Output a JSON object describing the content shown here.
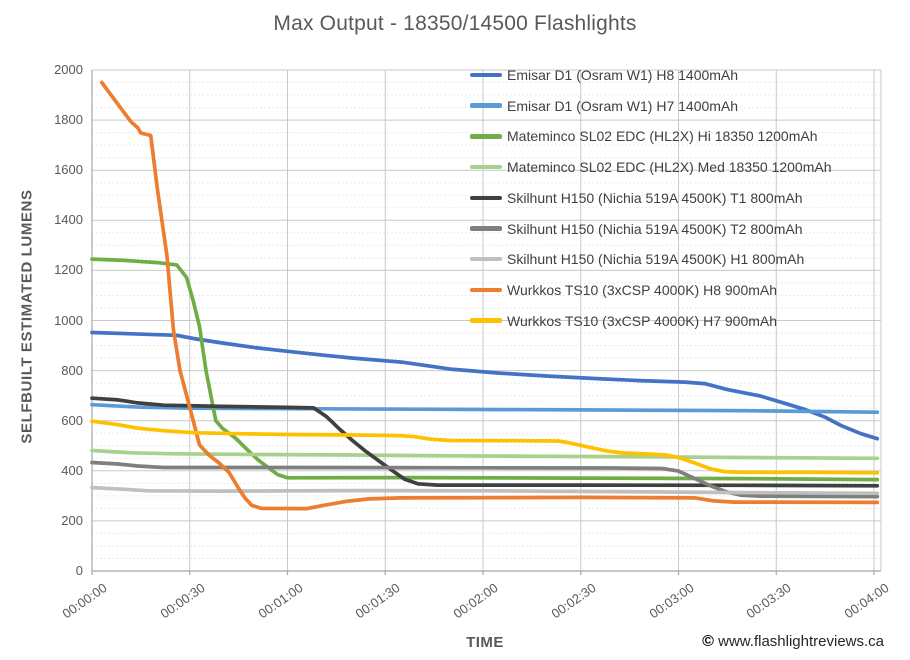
{
  "title": "Max Output - 18350/14500 Flashlights",
  "footer": {
    "copyright_symbol": "©",
    "site": " www.flashlightreviews.ca"
  },
  "x_axis": {
    "title": "TIME",
    "tick_seconds": [
      0,
      30,
      60,
      90,
      120,
      150,
      180,
      210,
      240
    ],
    "tick_labels": [
      "00:00:00",
      "00:00:30",
      "00:01:00",
      "00:01:30",
      "00:02:00",
      "00:02:30",
      "00:03:00",
      "00:03:30",
      "00:04:00"
    ]
  },
  "y_axis": {
    "title": "SELFBUILT ESTIMATED LUMENS",
    "tick_values": [
      0,
      200,
      400,
      600,
      800,
      1000,
      1200,
      1400,
      1600,
      1800,
      2000
    ],
    "tick_labels": [
      "0",
      "200",
      "400",
      "600",
      "800",
      "1000",
      "1200",
      "1400",
      "1600",
      "1800",
      "2000"
    ]
  },
  "colors": {
    "grid_major": "#c9c9c9",
    "grid_minor": "#e2e2e2",
    "axis_line": "#a6a6a6",
    "text": "#595959"
  },
  "chart_data": {
    "type": "line",
    "title": "Max Output - 18350/14500 Flashlights",
    "xlabel": "TIME",
    "ylabel": "SELFBUILT ESTIMATED LUMENS",
    "x_unit": "seconds",
    "xlim": [
      0,
      242
    ],
    "ylim": [
      0,
      2000
    ],
    "grid": {
      "major_y_step": 200,
      "minor_y_step": 50,
      "major_x_step_seconds": 30,
      "minor_gridlines": "dotted"
    },
    "legend_position": "inside-top-right",
    "series": [
      {
        "name": "Emisar D1 (Osram W1) H8 1400mAh",
        "color": "#4472c4",
        "points": [
          [
            0,
            952
          ],
          [
            12,
            947
          ],
          [
            26,
            941
          ],
          [
            32,
            926
          ],
          [
            40,
            910
          ],
          [
            50,
            892
          ],
          [
            60,
            877
          ],
          [
            70,
            863
          ],
          [
            80,
            850
          ],
          [
            95,
            834
          ],
          [
            110,
            806
          ],
          [
            125,
            790
          ],
          [
            140,
            778
          ],
          [
            155,
            768
          ],
          [
            168,
            760
          ],
          [
            182,
            754
          ],
          [
            188,
            748
          ],
          [
            195,
            724
          ],
          [
            205,
            699
          ],
          [
            213,
            668
          ],
          [
            219,
            644
          ],
          [
            225,
            614
          ],
          [
            230,
            580
          ],
          [
            236,
            548
          ],
          [
            241,
            528
          ]
        ]
      },
      {
        "name": "Emisar D1 (Osram W1) H7 1400mAh",
        "color": "#5b9bd5",
        "points": [
          [
            0,
            664
          ],
          [
            15,
            654
          ],
          [
            30,
            650
          ],
          [
            60,
            648
          ],
          [
            100,
            646
          ],
          [
            150,
            643
          ],
          [
            200,
            640
          ],
          [
            241,
            634
          ]
        ]
      },
      {
        "name": "Mateminco SL02 EDC (HL2X) Hi 18350 1200mAh",
        "color": "#70ad47",
        "points": [
          [
            0,
            1245
          ],
          [
            10,
            1240
          ],
          [
            20,
            1231
          ],
          [
            26,
            1222
          ],
          [
            29,
            1172
          ],
          [
            31,
            1082
          ],
          [
            33,
            976
          ],
          [
            35,
            800
          ],
          [
            38,
            600
          ],
          [
            40,
            570
          ],
          [
            44,
            531
          ],
          [
            48,
            480
          ],
          [
            51,
            443
          ],
          [
            54,
            414
          ],
          [
            57,
            385
          ],
          [
            60,
            372
          ],
          [
            100,
            373
          ],
          [
            150,
            371
          ],
          [
            200,
            369
          ],
          [
            241,
            365
          ]
        ]
      },
      {
        "name": "Mateminco SL02 EDC (HL2X) Med 18350 1200mAh",
        "color": "#a9d18e",
        "points": [
          [
            0,
            481
          ],
          [
            12,
            472
          ],
          [
            25,
            468
          ],
          [
            50,
            465
          ],
          [
            80,
            463
          ],
          [
            110,
            460
          ],
          [
            140,
            458
          ],
          [
            170,
            456
          ],
          [
            200,
            453
          ],
          [
            241,
            450
          ]
        ]
      },
      {
        "name": "Skilhunt H150 (Nichia 519A 4500K) T1 800mAh",
        "color": "#404040",
        "points": [
          [
            0,
            690
          ],
          [
            8,
            683
          ],
          [
            14,
            671
          ],
          [
            22,
            662
          ],
          [
            40,
            657
          ],
          [
            60,
            653
          ],
          [
            68,
            651
          ],
          [
            72,
            616
          ],
          [
            76,
            566
          ],
          [
            80,
            520
          ],
          [
            84,
            478
          ],
          [
            88,
            440
          ],
          [
            92,
            402
          ],
          [
            96,
            366
          ],
          [
            100,
            348
          ],
          [
            106,
            343
          ],
          [
            150,
            343
          ],
          [
            200,
            342
          ],
          [
            241,
            340
          ]
        ]
      },
      {
        "name": "Skilhunt H150 (Nichia 519A 4500K) T2 800mAh",
        "color": "#7f7f7f",
        "points": [
          [
            0,
            433
          ],
          [
            8,
            427
          ],
          [
            14,
            419
          ],
          [
            22,
            413
          ],
          [
            60,
            413
          ],
          [
            120,
            412
          ],
          [
            160,
            411
          ],
          [
            175,
            409
          ],
          [
            180,
            399
          ],
          [
            185,
            369
          ],
          [
            190,
            339
          ],
          [
            195,
            315
          ],
          [
            199,
            303
          ],
          [
            205,
            299
          ],
          [
            241,
            297
          ]
        ]
      },
      {
        "name": "Skilhunt H150 (Nichia 519A 4500K) H1 800mAh",
        "color": "#bfbfbf",
        "points": [
          [
            0,
            333
          ],
          [
            10,
            326
          ],
          [
            17,
            320
          ],
          [
            40,
            319
          ],
          [
            80,
            321
          ],
          [
            120,
            320
          ],
          [
            160,
            317
          ],
          [
            200,
            313
          ],
          [
            241,
            310
          ]
        ]
      },
      {
        "name": "Wurkkos TS10 (3xCSP 4000K) H8 900mAh",
        "color": "#ed7d31",
        "points": [
          [
            3,
            1950
          ],
          [
            6,
            1898
          ],
          [
            9,
            1845
          ],
          [
            12,
            1793
          ],
          [
            14,
            1770
          ],
          [
            15,
            1748
          ],
          [
            18,
            1739
          ],
          [
            20,
            1530
          ],
          [
            23,
            1260
          ],
          [
            25,
            960
          ],
          [
            27,
            800
          ],
          [
            29,
            702
          ],
          [
            31,
            603
          ],
          [
            33,
            503
          ],
          [
            36,
            462
          ],
          [
            39,
            431
          ],
          [
            42,
            395
          ],
          [
            45,
            330
          ],
          [
            47,
            291
          ],
          [
            49,
            262
          ],
          [
            52,
            250
          ],
          [
            66,
            249
          ],
          [
            71,
            262
          ],
          [
            78,
            278
          ],
          [
            85,
            288
          ],
          [
            95,
            292
          ],
          [
            150,
            294
          ],
          [
            185,
            292
          ],
          [
            191,
            280
          ],
          [
            197,
            275
          ],
          [
            241,
            274
          ]
        ]
      },
      {
        "name": "Wurkkos TS10 (3xCSP 4000K) H7 900mAh",
        "color": "#ffc000",
        "points": [
          [
            0,
            598
          ],
          [
            8,
            584
          ],
          [
            14,
            570
          ],
          [
            22,
            560
          ],
          [
            31,
            552
          ],
          [
            45,
            548
          ],
          [
            60,
            545
          ],
          [
            80,
            543
          ],
          [
            95,
            540
          ],
          [
            99,
            536
          ],
          [
            104,
            526
          ],
          [
            110,
            521
          ],
          [
            130,
            520
          ],
          [
            143,
            519
          ],
          [
            146,
            513
          ],
          [
            152,
            496
          ],
          [
            158,
            479
          ],
          [
            163,
            471
          ],
          [
            170,
            468
          ],
          [
            176,
            463
          ],
          [
            180,
            453
          ],
          [
            185,
            431
          ],
          [
            190,
            407
          ],
          [
            194,
            397
          ],
          [
            200,
            394
          ],
          [
            220,
            394
          ],
          [
            241,
            392
          ]
        ]
      }
    ]
  }
}
